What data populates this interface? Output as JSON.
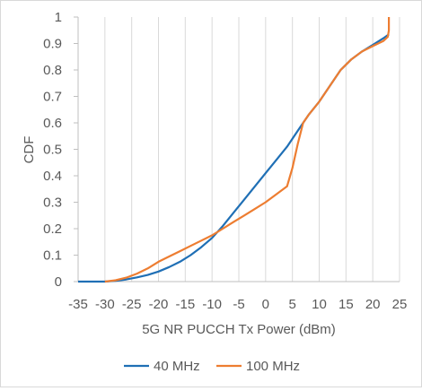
{
  "chart_data": {
    "type": "line",
    "xlabel": "5G NR PUCCH Tx Power (dBm)",
    "ylabel": "CDF",
    "xlim": [
      -35,
      25
    ],
    "ylim": [
      0,
      1
    ],
    "x_ticks": [
      -35,
      -30,
      -25,
      -20,
      -15,
      -10,
      -5,
      0,
      5,
      10,
      15,
      20,
      25
    ],
    "y_ticks": [
      0,
      0.1,
      0.2,
      0.3,
      0.4,
      0.5,
      0.6,
      0.7,
      0.8,
      0.9,
      1
    ],
    "x_tick_labels": [
      "-35",
      "-30",
      "-25",
      "-20",
      "-15",
      "-10",
      "-5",
      "0",
      "5",
      "10",
      "15",
      "20",
      "25"
    ],
    "y_tick_labels": [
      "0",
      "0.1",
      "0.2",
      "0.3",
      "0.4",
      "0.5",
      "0.6",
      "0.7",
      "0.8",
      "0.9",
      "1"
    ],
    "grid": "vertical",
    "legend": "bottom",
    "series": [
      {
        "name": "40 MHz",
        "color": "#1f6fb5",
        "x": [
          -35,
          -30,
          -28,
          -26,
          -24,
          -22,
          -20,
          -18,
          -16,
          -14,
          -12,
          -10,
          -8,
          -6,
          -4,
          -2,
          0,
          2,
          4,
          6,
          8,
          10,
          12,
          14,
          16,
          18,
          20,
          22,
          23
        ],
        "y": [
          0,
          0,
          0.003,
          0.008,
          0.016,
          0.025,
          0.038,
          0.055,
          0.075,
          0.1,
          0.13,
          0.165,
          0.21,
          0.26,
          0.31,
          0.36,
          0.41,
          0.46,
          0.51,
          0.57,
          0.63,
          0.68,
          0.74,
          0.8,
          0.84,
          0.87,
          0.895,
          0.92,
          0.935
        ]
      },
      {
        "name": "100 MHz",
        "color": "#ed7d31",
        "x": [
          -30,
          -28,
          -26,
          -24,
          -22,
          -20,
          -18,
          -16,
          -14,
          -12,
          -10,
          -8,
          -6,
          -4,
          -2,
          0,
          2,
          4,
          5,
          6,
          7,
          8,
          10,
          12,
          14,
          16,
          18,
          20,
          22,
          22.8,
          23,
          23
        ],
        "y": [
          0,
          0.005,
          0.015,
          0.03,
          0.05,
          0.075,
          0.095,
          0.115,
          0.135,
          0.155,
          0.175,
          0.2,
          0.225,
          0.25,
          0.275,
          0.3,
          0.33,
          0.36,
          0.43,
          0.52,
          0.6,
          0.63,
          0.68,
          0.74,
          0.8,
          0.84,
          0.87,
          0.89,
          0.91,
          0.925,
          0.95,
          1.0
        ]
      }
    ]
  }
}
